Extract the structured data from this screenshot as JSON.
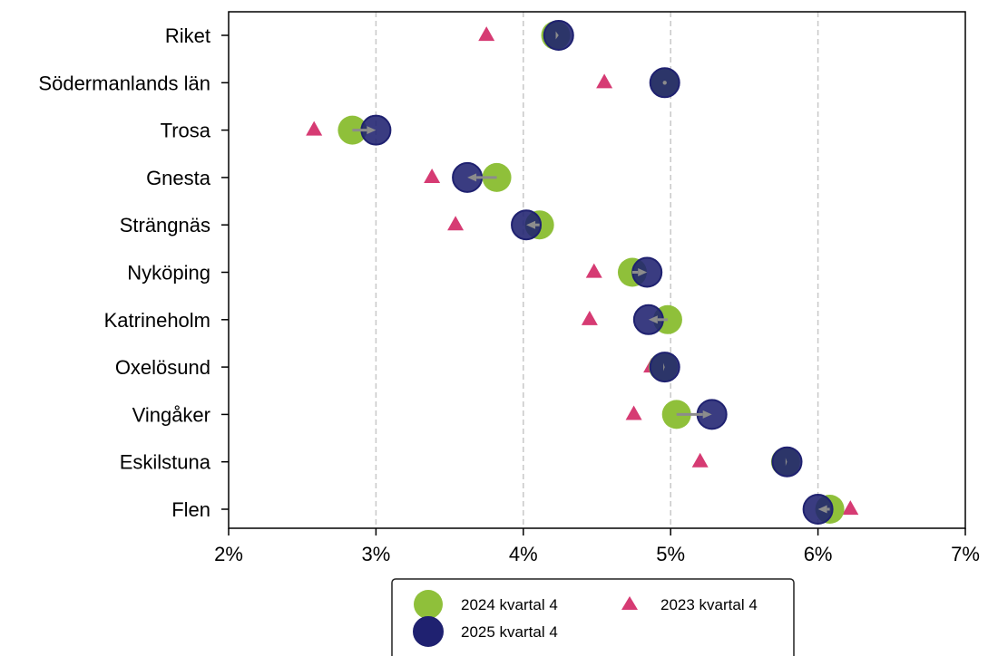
{
  "chart_data": {
    "type": "scatter",
    "title": "",
    "xlabel": "",
    "ylabel": "",
    "xlim": [
      0.02,
      0.07
    ],
    "x_ticks": [
      {
        "value": 0.02,
        "label": "2%"
      },
      {
        "value": 0.03,
        "label": "3%"
      },
      {
        "value": 0.04,
        "label": "4%"
      },
      {
        "value": 0.05,
        "label": "5%"
      },
      {
        "value": 0.06,
        "label": "6%"
      },
      {
        "value": 0.07,
        "label": "7%"
      }
    ],
    "gridlines": [
      0.03,
      0.04,
      0.05,
      0.06
    ],
    "categories": [
      "Riket",
      "Södermanlands län",
      "Trosa",
      "Gnesta",
      "Strängnäs",
      "Nyköping",
      "Katrineholm",
      "Oxelösund",
      "Vingåker",
      "Eskilstuna",
      "Flen"
    ],
    "series": [
      {
        "name": "2024 kvartal 4",
        "marker": "circle",
        "color": "#8fc03a",
        "values": [
          0.0422,
          0.0496,
          0.0284,
          0.0382,
          0.0411,
          0.0474,
          0.0498,
          0.0495,
          0.0504,
          0.0578,
          0.0608
        ]
      },
      {
        "name": "2025 kvartal 4",
        "marker": "circle",
        "color": "#1f2170",
        "values": [
          0.0424,
          0.0496,
          0.03,
          0.0362,
          0.0402,
          0.0484,
          0.0485,
          0.0496,
          0.0528,
          0.0579,
          0.06
        ]
      },
      {
        "name": "2023 kvartal 4",
        "marker": "triangle",
        "color": "#d63b73",
        "values": [
          0.0375,
          0.0455,
          0.0258,
          0.0338,
          0.0354,
          0.0448,
          0.0445,
          0.0487,
          0.0475,
          0.052,
          0.0622
        ]
      }
    ],
    "arrow_color": "#8c8c8c",
    "legend": {
      "placement": "bottom-center",
      "entries": [
        {
          "series": 0,
          "label": "2024 kvartal 4"
        },
        {
          "series": 2,
          "label": "2023 kvartal 4"
        },
        {
          "series": 1,
          "label": "2025 kvartal 4"
        }
      ]
    }
  }
}
